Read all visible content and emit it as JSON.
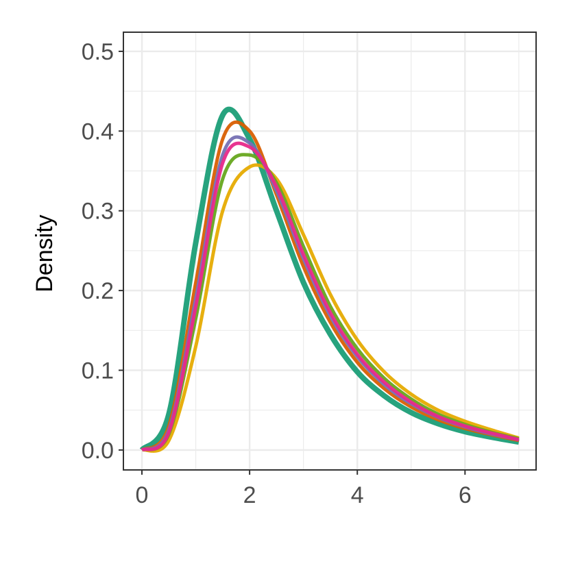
{
  "chart_data": {
    "type": "line",
    "y_label": "Density",
    "x": [
      0,
      0.5,
      1,
      1.5,
      2,
      2.5,
      3,
      3.5,
      4,
      4.5,
      5,
      5.5,
      6,
      6.5,
      7
    ],
    "series": [
      {
        "color": "#1b9e77",
        "values": [
          0,
          0.045,
          0.26,
          0.42,
          0.39,
          0.3,
          0.21,
          0.145,
          0.098,
          0.068,
          0.047,
          0.033,
          0.023,
          0.016,
          0.01
        ]
      },
      {
        "color": "#d95f02",
        "values": [
          0,
          0.03,
          0.21,
          0.39,
          0.4,
          0.32,
          0.23,
          0.16,
          0.11,
          0.077,
          0.054,
          0.038,
          0.027,
          0.019,
          0.012
        ]
      },
      {
        "color": "#e6ab02",
        "values": [
          0,
          0.012,
          0.13,
          0.3,
          0.355,
          0.34,
          0.27,
          0.195,
          0.138,
          0.098,
          0.07,
          0.05,
          0.036,
          0.025,
          0.015
        ]
      },
      {
        "color": "#66a61e",
        "values": [
          0,
          0.02,
          0.165,
          0.34,
          0.37,
          0.335,
          0.255,
          0.18,
          0.127,
          0.09,
          0.064,
          0.045,
          0.032,
          0.022,
          0.014
        ]
      },
      {
        "color": "#7570b3",
        "values": [
          0,
          0.025,
          0.19,
          0.37,
          0.385,
          0.325,
          0.24,
          0.168,
          0.117,
          0.082,
          0.058,
          0.041,
          0.029,
          0.02,
          0.013
        ]
      },
      {
        "color": "#e7298a",
        "values": [
          0,
          0.022,
          0.18,
          0.36,
          0.38,
          0.33,
          0.245,
          0.172,
          0.12,
          0.085,
          0.06,
          0.042,
          0.03,
          0.021,
          0.013
        ]
      }
    ],
    "xlim": [
      -0.344,
      7.32
    ],
    "ylim": [
      -0.025,
      0.524
    ],
    "xticks": [
      0,
      2,
      4,
      6
    ],
    "yticks": [
      {
        "value": 0,
        "label": "0.0"
      },
      0.1,
      0.2,
      0.3,
      0.4,
      0.5
    ],
    "x_minor_grid": [
      1,
      3,
      5,
      7
    ],
    "y_minor_grid": [
      0.05,
      0.15,
      0.25,
      0.35,
      0.45
    ],
    "grid": true
  }
}
